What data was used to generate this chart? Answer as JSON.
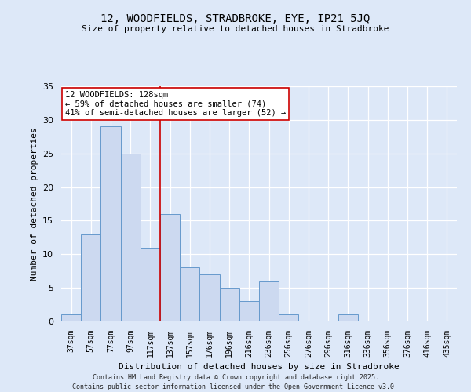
{
  "title1": "12, WOODFIELDS, STRADBROKE, EYE, IP21 5JQ",
  "title2": "Size of property relative to detached houses in Stradbroke",
  "xlabel": "Distribution of detached houses by size in Stradbroke",
  "ylabel": "Number of detached properties",
  "categories": [
    "37sqm",
    "57sqm",
    "77sqm",
    "97sqm",
    "117sqm",
    "137sqm",
    "157sqm",
    "176sqm",
    "196sqm",
    "216sqm",
    "236sqm",
    "256sqm",
    "276sqm",
    "296sqm",
    "316sqm",
    "336sqm",
    "356sqm",
    "376sqm",
    "416sqm",
    "435sqm"
  ],
  "values": [
    1,
    13,
    29,
    25,
    11,
    16,
    8,
    7,
    5,
    3,
    6,
    1,
    0,
    0,
    1,
    0,
    0,
    0,
    0,
    0
  ],
  "bar_color": "#ccd9f0",
  "bar_edge_color": "#6699cc",
  "vline_color": "#cc0000",
  "vline_pos": 4.5,
  "annotation_title": "12 WOODFIELDS: 128sqm",
  "annotation_line1": "← 59% of detached houses are smaller (74)",
  "annotation_line2": "41% of semi-detached houses are larger (52) →",
  "annotation_box_color": "#ffffff",
  "annotation_box_edge": "#cc0000",
  "ylim": [
    0,
    35
  ],
  "yticks": [
    0,
    5,
    10,
    15,
    20,
    25,
    30,
    35
  ],
  "footer1": "Contains HM Land Registry data © Crown copyright and database right 2025.",
  "footer2": "Contains public sector information licensed under the Open Government Licence v3.0.",
  "bg_color": "#dde8f8"
}
